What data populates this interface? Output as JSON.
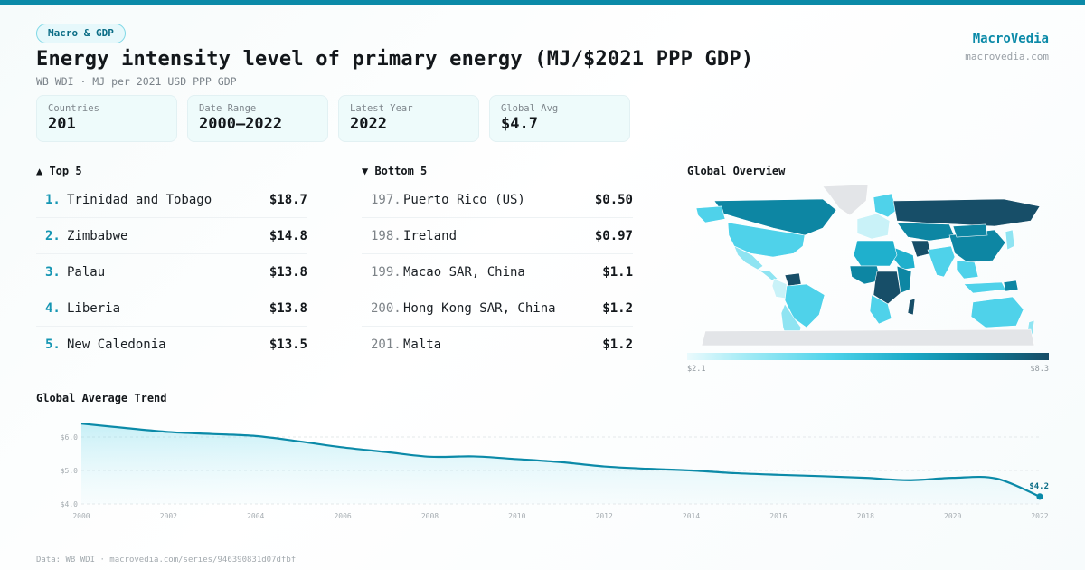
{
  "header": {
    "category_badge": "Macro & GDP",
    "title": "Energy intensity level of primary energy (MJ/$2021 PPP GDP)",
    "subtitle": "WB WDI · MJ per 2021 USD PPP GDP",
    "brand": "MacroVedia",
    "brand_url": "macrovedia.com"
  },
  "stats": [
    {
      "label": "Countries",
      "value": "201"
    },
    {
      "label": "Date Range",
      "value": "2000–2022"
    },
    {
      "label": "Latest Year",
      "value": "2022"
    },
    {
      "label": "Global Avg",
      "value": "$4.7"
    }
  ],
  "top5": {
    "title": "▲ Top 5",
    "items": [
      {
        "rank": "1.",
        "name": "Trinidad and Tobago",
        "value": "$18.7"
      },
      {
        "rank": "2.",
        "name": "Zimbabwe",
        "value": "$14.8"
      },
      {
        "rank": "3.",
        "name": "Palau",
        "value": "$13.8"
      },
      {
        "rank": "4.",
        "name": "Liberia",
        "value": "$13.8"
      },
      {
        "rank": "5.",
        "name": "New Caledonia",
        "value": "$13.5"
      }
    ]
  },
  "bottom5": {
    "title": "▼ Bottom 5",
    "items": [
      {
        "rank": "197.",
        "name": "Puerto Rico (US)",
        "value": "$0.50"
      },
      {
        "rank": "198.",
        "name": "Ireland",
        "value": "$0.97"
      },
      {
        "rank": "199.",
        "name": "Macao SAR, China",
        "value": "$1.1"
      },
      {
        "rank": "200.",
        "name": "Hong Kong SAR, China",
        "value": "$1.2"
      },
      {
        "rank": "201.",
        "name": "Malta",
        "value": "$1.2"
      }
    ]
  },
  "map": {
    "title": "Global Overview",
    "scale_min": "$2.1",
    "scale_max": "$8.3",
    "colors": {
      "no_data": "#e3e5e8",
      "level1": "#c9f2f8",
      "level2": "#8fe4f2",
      "level3": "#4fd2ea",
      "level4": "#1fb0cd",
      "level5": "#0d86a3",
      "level6": "#174e68"
    },
    "regions": [
      {
        "name": "Canada",
        "level": "level5"
      },
      {
        "name": "Alaska",
        "level": "level3"
      },
      {
        "name": "Greenland",
        "level": "no_data"
      },
      {
        "name": "United States",
        "level": "level3"
      },
      {
        "name": "Mexico",
        "level": "level2"
      },
      {
        "name": "Central America",
        "level": "level2"
      },
      {
        "name": "Venezuela",
        "level": "level6"
      },
      {
        "name": "Colombia",
        "level": "level1"
      },
      {
        "name": "Brazil",
        "level": "level3"
      },
      {
        "name": "Southern South America",
        "level": "level2"
      },
      {
        "name": "Western Europe",
        "level": "level1"
      },
      {
        "name": "Scandinavia",
        "level": "level3"
      },
      {
        "name": "Russia",
        "level": "level6"
      },
      {
        "name": "Central Asia",
        "level": "level5"
      },
      {
        "name": "Iran",
        "level": "level6"
      },
      {
        "name": "Arabian Peninsula",
        "level": "level4"
      },
      {
        "name": "North Africa",
        "level": "level4"
      },
      {
        "name": "West Africa",
        "level": "level5"
      },
      {
        "name": "Central Africa",
        "level": "level6"
      },
      {
        "name": "East Africa",
        "level": "level5"
      },
      {
        "name": "Southern Africa",
        "level": "level3"
      },
      {
        "name": "Madagascar",
        "level": "level6"
      },
      {
        "name": "India",
        "level": "level3"
      },
      {
        "name": "China",
        "level": "level5"
      },
      {
        "name": "Mongolia",
        "level": "level5"
      },
      {
        "name": "Southeast Asia",
        "level": "level3"
      },
      {
        "name": "Japan",
        "level": "level2"
      },
      {
        "name": "Indonesia",
        "level": "level3"
      },
      {
        "name": "Papua New Guinea",
        "level": "level5"
      },
      {
        "name": "Australia",
        "level": "level3"
      },
      {
        "name": "New Zealand",
        "level": "level2"
      },
      {
        "name": "Antarctica",
        "level": "no_data"
      }
    ]
  },
  "trend": {
    "title": "Global Average Trend",
    "last_label": "$4.2"
  },
  "chart_data": {
    "type": "area",
    "title": "Global Average Trend",
    "xlabel": "",
    "ylabel": "",
    "x": [
      2000,
      2001,
      2002,
      2003,
      2004,
      2005,
      2006,
      2007,
      2008,
      2009,
      2010,
      2011,
      2012,
      2013,
      2014,
      2015,
      2016,
      2017,
      2018,
      2019,
      2020,
      2021,
      2022
    ],
    "series": [
      {
        "name": "Global Average",
        "values": [
          6.4,
          6.27,
          6.15,
          6.09,
          6.03,
          5.87,
          5.69,
          5.55,
          5.41,
          5.42,
          5.34,
          5.25,
          5.12,
          5.05,
          5.0,
          4.92,
          4.87,
          4.83,
          4.78,
          4.71,
          4.78,
          4.76,
          4.22
        ]
      }
    ],
    "xticks": [
      "2000",
      "2002",
      "2004",
      "2006",
      "2008",
      "2010",
      "2012",
      "2014",
      "2016",
      "2018",
      "2020",
      "2022"
    ],
    "yticks": [
      "$4.0",
      "$5.0",
      "$6.0"
    ],
    "ylim": [
      4.0,
      6.6
    ],
    "xlim": [
      2000,
      2022
    ],
    "grid": true,
    "end_annotation": "$4.2",
    "line_color": "#0b8aa8"
  },
  "footer": {
    "source": "Data: WB WDI · macrovedia.com/series/946390831d07dfbf"
  }
}
